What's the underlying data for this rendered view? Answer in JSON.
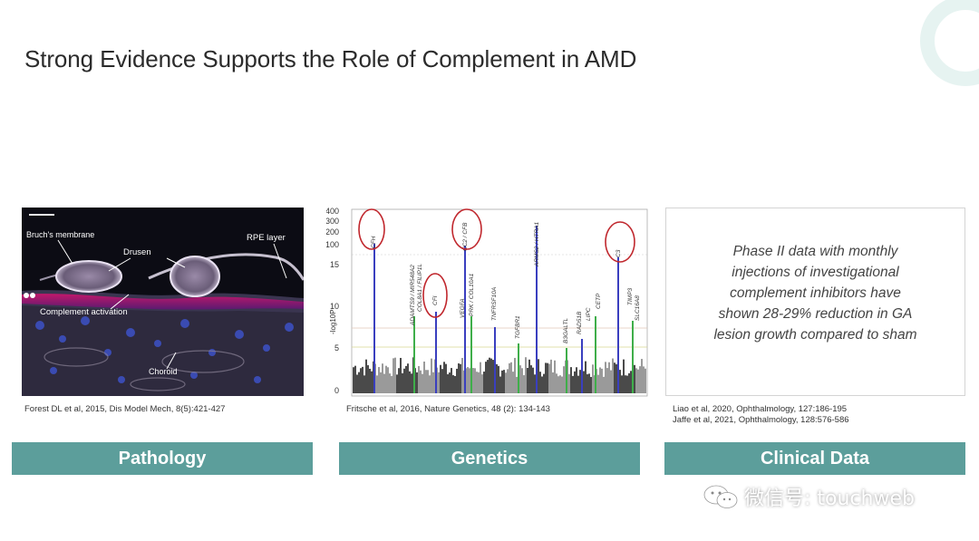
{
  "slide": {
    "title": "Strong Evidence Supports the Role of Complement in AMD"
  },
  "pathology": {
    "labels": {
      "bruchs": "Bruch's membrane",
      "drusen": "Drusen",
      "rpe": "RPE layer",
      "complement": "Complement activation",
      "choroid": "Choroid"
    },
    "caption": "Forest DL et al, 2015, Dis Model Mech, 8(5):421-427",
    "button": "Pathology"
  },
  "genetics": {
    "y_ticks": [
      "400",
      "300",
      "200",
      "100",
      "15",
      "10",
      "5",
      "0"
    ],
    "y_label": "-log10P",
    "gene_labels": [
      "CFH",
      "ADAMTS9 / MIR548A2",
      "COL8A1 / FILIP1L",
      "CFI",
      "CC2 / CFB",
      "VEGFA",
      "PRK / COL10A1",
      "TNFRSF10A",
      "ARMS2 / HTRA1",
      "TGFBR1",
      "B3GALTL",
      "RAD51B",
      "LIPC",
      "CETP",
      "C3",
      "TIMP3",
      "SLC16A8"
    ],
    "caption": "Fritsche et al, 2016, Nature Genetics, 48 (2): 134-143",
    "button": "Genetics"
  },
  "clinical": {
    "lines": [
      "Phase II data with monthly",
      "injections of investigational",
      "complement inhibitors have",
      "shown 28-29% reduction in GA",
      "lesion growth compared to sham"
    ],
    "caption_1": "Liao et al, 2020, Ophthalmology, 127:186-195",
    "caption_2": "Jaffe et al, 2021, Ophthalmology, 128:576-586",
    "button": "Clinical Data"
  },
  "watermark": {
    "text": "微信号: touchweb"
  },
  "colors": {
    "accent": "#5c9e9b",
    "highlight_circle": "#c0272d"
  }
}
